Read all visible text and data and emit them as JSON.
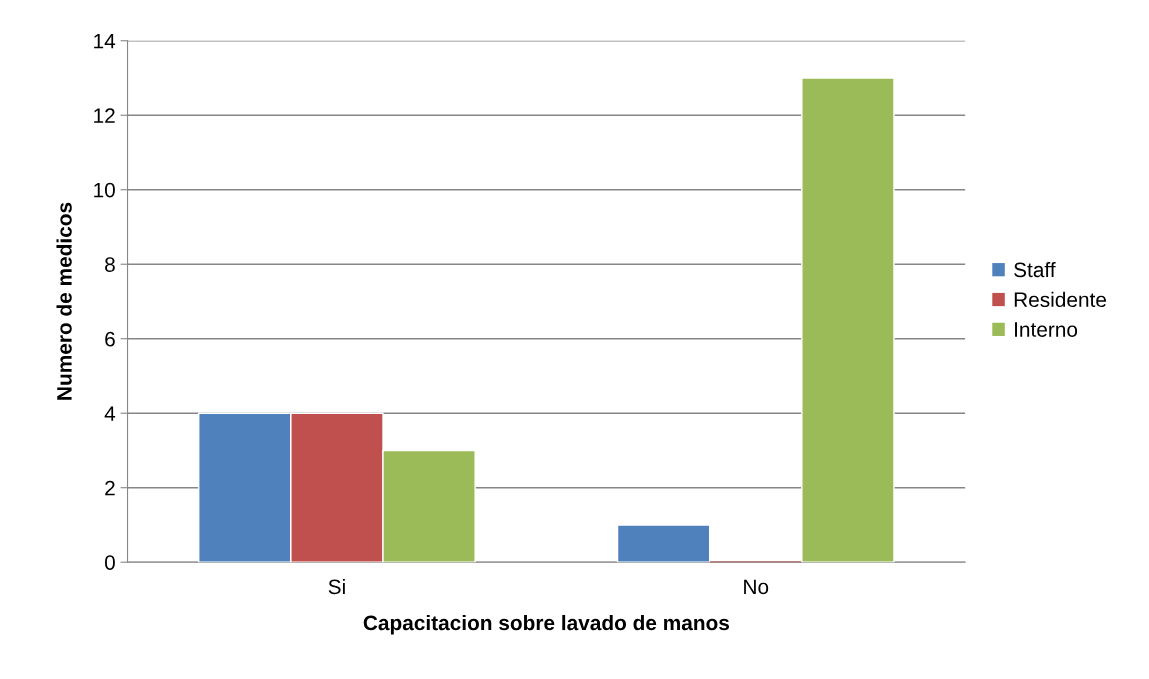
{
  "chart_data": {
    "type": "bar",
    "xlabel": "Capacitacion sobre lavado de manos",
    "ylabel": "Numero de medicos",
    "categories": [
      "Si",
      "No"
    ],
    "series": [
      {
        "name": "Staff",
        "color": "#4f81bd",
        "values": [
          4,
          1
        ]
      },
      {
        "name": "Residente",
        "color": "#c0504d",
        "values": [
          4,
          0
        ]
      },
      {
        "name": "Interno",
        "color": "#9bbb59",
        "values": [
          3,
          13
        ]
      }
    ],
    "ylim": [
      0,
      14
    ],
    "yticks": [
      0,
      2,
      4,
      6,
      8,
      10,
      12,
      14
    ],
    "grid": "y",
    "legend": "right"
  }
}
